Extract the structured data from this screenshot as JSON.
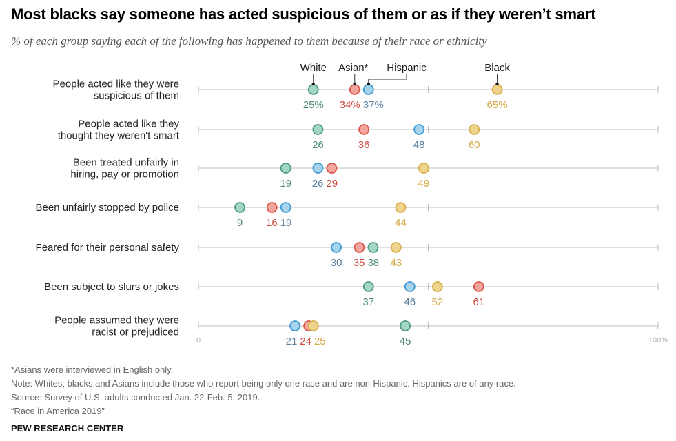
{
  "title": "Most blacks say someone has acted suspicious of them or as if they weren’t smart",
  "subtitle": "% of each group saying each of the following has happened to them because of their race or ethnicity",
  "notes": [
    "*Asians were interviewed in English only.",
    "Note: Whites, blacks and Asians include those who report being only one race and are non-Hispanic. Hispanics are of any race.",
    "Source: Survey of U.S. adults conducted Jan. 22-Feb. 5, 2019.",
    "“Race in America 2019”"
  ],
  "brand": "PEW RESEARCH CENTER",
  "chart_data": {
    "type": "scatter",
    "xlim": [
      0,
      100
    ],
    "tick_labels": [
      "0",
      "100%"
    ],
    "categories": [
      [
        "People acted like they were",
        "suspicious of them"
      ],
      [
        "People acted like they",
        "thought they weren't smart"
      ],
      [
        "Been treated unfairly in",
        "hiring, pay or promotion"
      ],
      [
        "Been unfairly stopped by police"
      ],
      [
        "Feared for their personal safety"
      ],
      [
        "Been subject to slurs or jokes"
      ],
      [
        "People assumed they were",
        "racist or prejudiced"
      ]
    ],
    "series": [
      {
        "name": "Hispanic",
        "values": [
          37,
          48,
          26,
          19,
          30,
          46,
          21
        ],
        "fill": "#a8d3ec",
        "stroke": "#3d9bd6",
        "label": "#5b7f9e"
      },
      {
        "name": "Asian*",
        "values": [
          34,
          36,
          29,
          16,
          35,
          61,
          24
        ],
        "fill": "#f2a59c",
        "stroke": "#d8554b",
        "label": "#cc4a40"
      },
      {
        "name": "Black",
        "values": [
          65,
          60,
          49,
          44,
          43,
          52,
          25
        ],
        "fill": "#eed48c",
        "stroke": "#d6b04c",
        "label": "#d3a945"
      },
      {
        "name": "White",
        "values": [
          25,
          26,
          19,
          9,
          38,
          37,
          45
        ],
        "fill": "#a3d7c4",
        "stroke": "#4f9a80",
        "label": "#4e8b75"
      }
    ]
  }
}
